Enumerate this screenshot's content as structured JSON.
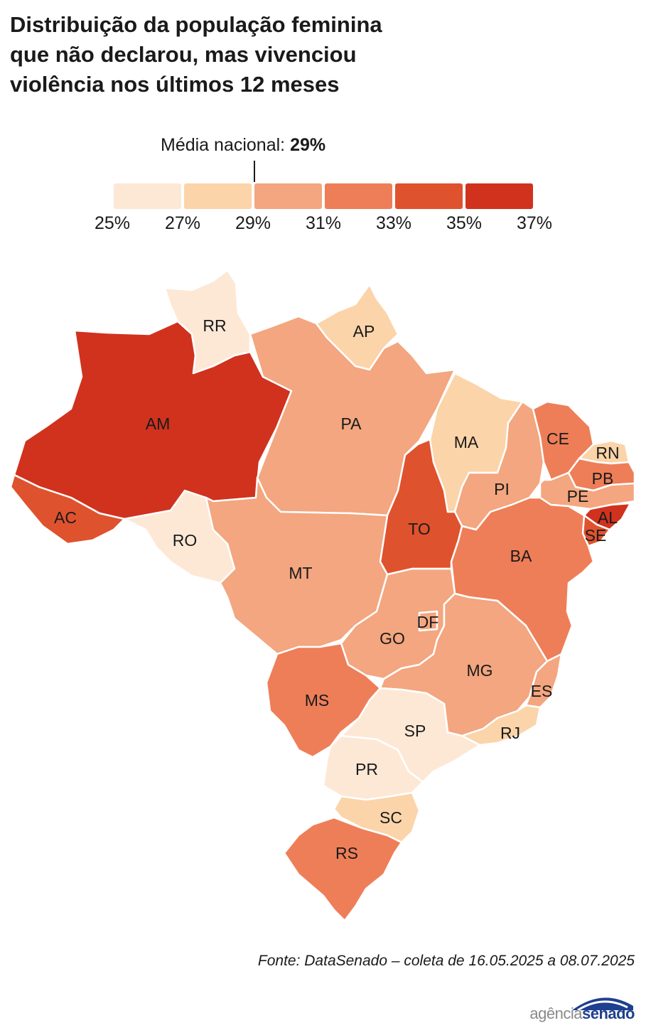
{
  "title": {
    "line1": "Distribuição da população feminina",
    "line2": "que não declarou, mas vivenciou",
    "line3": "violência nos últimos 12 meses"
  },
  "average": {
    "label": "Média nacional:",
    "value": "29%"
  },
  "legend": {
    "ticks": [
      "25%",
      "27%",
      "29%",
      "31%",
      "33%",
      "35%",
      "37%"
    ],
    "colors": [
      "#fde8d6",
      "#fbd4a9",
      "#f3a67f",
      "#ee7e58",
      "#df522e",
      "#d0321e"
    ]
  },
  "states": {
    "RR": {
      "label": "RR",
      "color": "#fde8d6"
    },
    "AP": {
      "label": "AP",
      "color": "#fbd4a9"
    },
    "AM": {
      "label": "AM",
      "color": "#d0321e"
    },
    "PA": {
      "label": "PA",
      "color": "#f3a67f"
    },
    "MA": {
      "label": "MA",
      "color": "#fbd4a9"
    },
    "CE": {
      "label": "CE",
      "color": "#ee7e58"
    },
    "RN": {
      "label": "RN",
      "color": "#fbd4a9"
    },
    "PB": {
      "label": "PB",
      "color": "#ee7e58"
    },
    "PE": {
      "label": "PE",
      "color": "#f3a67f"
    },
    "AL": {
      "label": "AL",
      "color": "#d0321e"
    },
    "SE": {
      "label": "SE",
      "color": "#df522e"
    },
    "PI": {
      "label": "PI",
      "color": "#f3a67f"
    },
    "AC": {
      "label": "AC",
      "color": "#df522e"
    },
    "RO": {
      "label": "RO",
      "color": "#fde8d6"
    },
    "TO": {
      "label": "TO",
      "color": "#df522e"
    },
    "BA": {
      "label": "BA",
      "color": "#ee7e58"
    },
    "MT": {
      "label": "MT",
      "color": "#f3a67f"
    },
    "GO": {
      "label": "GO",
      "color": "#f3a67f"
    },
    "DF": {
      "label": "DF",
      "color": "#f3a67f"
    },
    "MG": {
      "label": "MG",
      "color": "#f3a67f"
    },
    "ES": {
      "label": "ES",
      "color": "#f3a67f"
    },
    "MS": {
      "label": "MS",
      "color": "#ee7e58"
    },
    "SP": {
      "label": "SP",
      "color": "#fde8d6"
    },
    "RJ": {
      "label": "RJ",
      "color": "#fbd4a9"
    },
    "PR": {
      "label": "PR",
      "color": "#fde8d6"
    },
    "SC": {
      "label": "SC",
      "color": "#fbd4a9"
    },
    "RS": {
      "label": "RS",
      "color": "#ee7e58"
    }
  },
  "source": "Fonte: DataSenado – coleta de 16.05.2025 a 08.07.2025",
  "logo": {
    "part1": "agência",
    "part2": "senado"
  }
}
